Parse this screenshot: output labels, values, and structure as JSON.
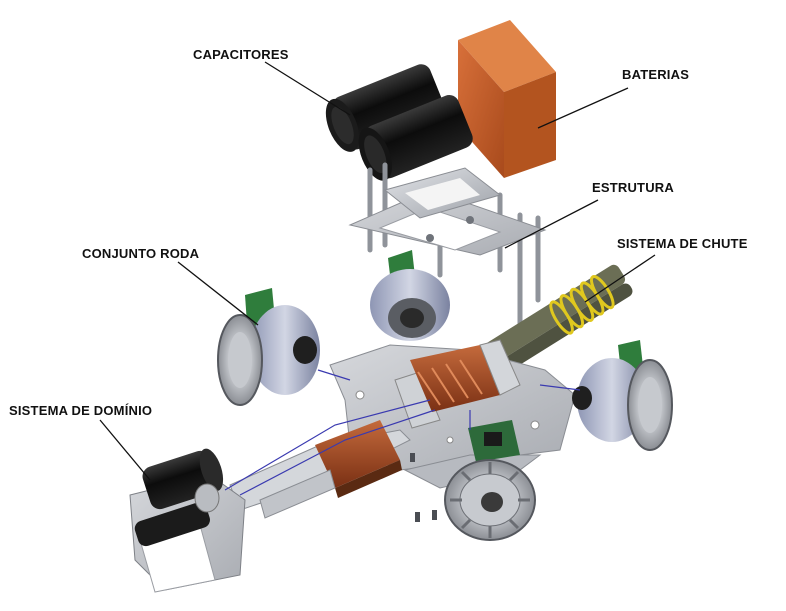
{
  "labels": {
    "capacitores": "CAPACITORES",
    "baterias": "BATERIAS",
    "estrutura": "ESTRUTURA",
    "sistema_chute": "SISTEMA DE CHUTE",
    "conjunto_roda": "CONJUNTO RODA",
    "sistema_dominio": "SISTEMA DE DOMÍNIO"
  },
  "colors": {
    "battery": "#c8622a",
    "capacitor": "#111111",
    "metal": "#b9bcc2",
    "pcb": "#2e6b3a",
    "spring": "#d8c21c",
    "copper": "#a04a24",
    "wire": "#3a3ab0"
  }
}
